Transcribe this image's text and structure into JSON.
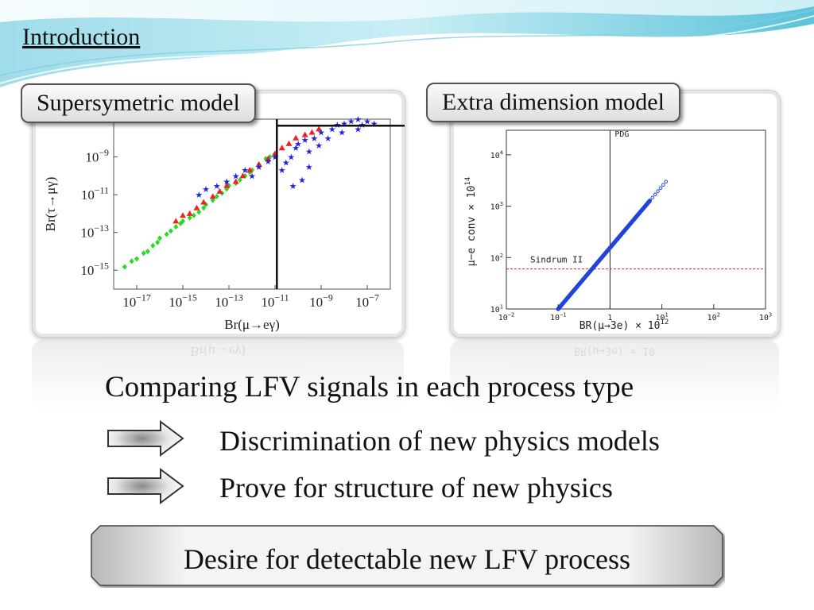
{
  "slide_title": "Introduction",
  "left_panel": {
    "label": "Supersymetric model",
    "xlabel": "Br(μ→eγ)",
    "ylabel": "Br(τ→μγ)",
    "x_ticks": [
      {
        "base": "10",
        "exp": "−17"
      },
      {
        "base": "10",
        "exp": "−15"
      },
      {
        "base": "10",
        "exp": "−13"
      },
      {
        "base": "10",
        "exp": "−11"
      },
      {
        "base": "10",
        "exp": "−9"
      },
      {
        "base": "10",
        "exp": "−7"
      }
    ],
    "y_ticks": [
      {
        "base": "10",
        "exp": "−9"
      },
      {
        "base": "10",
        "exp": "−11"
      },
      {
        "base": "10",
        "exp": "−13"
      },
      {
        "base": "10",
        "exp": "−15"
      }
    ],
    "reflection_text": "Br(μ→eγ)"
  },
  "right_panel": {
    "label": "Extra dimension model",
    "xlabel": "BR(μ→3e) × 10",
    "xlabel_exp": "12",
    "ylabel": "μ−e conv × 10",
    "ylabel_exp": "14",
    "pdg_label": "PDG",
    "sindrum_label": "Sindrum II",
    "x_ticks": [
      {
        "base": "10",
        "exp": "−2"
      },
      {
        "base": "10",
        "exp": "−1"
      },
      {
        "base": "1",
        "exp": ""
      },
      {
        "base": "10",
        "exp": "1"
      },
      {
        "base": "10",
        "exp": "2"
      },
      {
        "base": "10",
        "exp": "3"
      }
    ],
    "y_ticks": [
      {
        "base": "10",
        "exp": "4"
      },
      {
        "base": "10",
        "exp": "3"
      },
      {
        "base": "10",
        "exp": "2"
      },
      {
        "base": "10",
        "exp": "1"
      }
    ],
    "reflection_text": "BR(μ→3e) × 10"
  },
  "heading": "Comparing LFV signals in each process type",
  "bullets": [
    "Discrimination of new physics models",
    "Prove for structure of new physics"
  ],
  "banner": "Desire for detectable new LFV process",
  "chart_data": [
    {
      "type": "scatter",
      "title": "",
      "xlabel": "Br(μ→eγ)",
      "ylabel": "Br(τ→μγ)",
      "xscale": "log",
      "yscale": "log",
      "xlim": [
        1e-18,
        1e-06
      ],
      "ylim": [
        1e-16,
        1e-07
      ],
      "reference_lines": {
        "vertical_x": 1.2e-11,
        "horizontal_y": 4.5e-08
      },
      "series": [
        {
          "color": "#22dd22",
          "marker": "diamond",
          "points": [
            [
              3e-18,
              1.5e-15
            ],
            [
              6e-18,
              3e-15
            ],
            [
              1e-17,
              4e-15
            ],
            [
              2e-17,
              8e-15
            ],
            [
              3e-17,
              1e-14
            ],
            [
              5e-17,
              2e-14
            ],
            [
              8e-17,
              3e-14
            ],
            [
              1e-16,
              5e-14
            ],
            [
              2e-16,
              8e-14
            ],
            [
              3e-16,
              1.2e-13
            ],
            [
              5e-16,
              2e-13
            ],
            [
              8e-16,
              3e-13
            ],
            [
              1e-15,
              4e-13
            ],
            [
              2e-15,
              6e-13
            ],
            [
              3e-15,
              8e-13
            ],
            [
              5e-15,
              1.2e-12
            ],
            [
              8e-15,
              2e-12
            ],
            [
              1e-14,
              3e-12
            ],
            [
              2e-14,
              5e-12
            ],
            [
              3e-14,
              8e-12
            ],
            [
              5e-14,
              1.2e-11
            ],
            [
              8e-14,
              2e-11
            ],
            [
              1e-13,
              3e-11
            ],
            [
              2e-13,
              4e-11
            ],
            [
              3e-13,
              6e-11
            ],
            [
              5e-13,
              1e-10
            ],
            [
              8e-13,
              1.5e-10
            ],
            [
              1e-12,
              2e-10
            ],
            [
              2e-12,
              4e-10
            ],
            [
              4e-12,
              8e-10
            ],
            [
              6e-12,
              1e-09
            ],
            [
              1e-11,
              1.5e-09
            ]
          ]
        },
        {
          "color": "#ee2222",
          "marker": "triangle",
          "points": [
            [
              5e-16,
              4e-13
            ],
            [
              1e-15,
              8e-13
            ],
            [
              2e-15,
              1e-12
            ],
            [
              4e-15,
              2e-12
            ],
            [
              8e-15,
              4e-12
            ],
            [
              2e-14,
              8e-12
            ],
            [
              4e-14,
              1.5e-11
            ],
            [
              8e-14,
              3e-11
            ],
            [
              2e-13,
              5e-11
            ],
            [
              4e-13,
              1e-10
            ],
            [
              8e-13,
              2e-10
            ],
            [
              2e-12,
              4e-10
            ],
            [
              5e-12,
              8e-10
            ],
            [
              1e-11,
              1.5e-09
            ],
            [
              2e-11,
              3e-09
            ],
            [
              4e-11,
              5e-09
            ],
            [
              8e-11,
              1e-08
            ],
            [
              2e-10,
              1.5e-08
            ],
            [
              4e-10,
              2e-08
            ],
            [
              8e-10,
              3e-08
            ]
          ]
        },
        {
          "color": "#2222dd",
          "marker": "star",
          "points": [
            [
              5e-15,
              1e-11
            ],
            [
              1e-14,
              2e-11
            ],
            [
              3e-14,
              3e-11
            ],
            [
              8e-14,
              5e-11
            ],
            [
              2e-13,
              1e-10
            ],
            [
              5e-13,
              2e-10
            ],
            [
              1e-12,
              1e-10
            ],
            [
              2e-12,
              3e-10
            ],
            [
              5e-12,
              6e-10
            ],
            [
              1e-11,
              1e-09
            ],
            [
              2e-11,
              2e-10
            ],
            [
              3e-11,
              5e-10
            ],
            [
              5e-11,
              1e-09
            ],
            [
              8e-11,
              3e-09
            ],
            [
              1e-10,
              5e-09
            ],
            [
              2e-10,
              8e-09
            ],
            [
              3e-10,
              2e-09
            ],
            [
              5e-10,
              1e-08
            ],
            [
              8e-10,
              4e-09
            ],
            [
              1e-09,
              2e-08
            ],
            [
              2e-09,
              1e-08
            ],
            [
              3e-09,
              3e-08
            ],
            [
              5e-09,
              5e-08
            ],
            [
              8e-09,
              2e-08
            ],
            [
              1e-08,
              6e-08
            ],
            [
              2e-08,
              8e-08
            ],
            [
              4e-08,
              1e-07
            ],
            [
              6e-08,
              5e-08
            ],
            [
              1e-07,
              8e-08
            ],
            [
              2e-07,
              6e-08
            ],
            [
              4e-08,
              3e-08
            ],
            [
              3e-10,
              3e-10
            ],
            [
              6e-11,
              3e-11
            ],
            [
              1.5e-10,
              6e-11
            ]
          ]
        }
      ]
    },
    {
      "type": "scatter",
      "title": "",
      "xlabel": "BR(μ→3e) × 10^12",
      "ylabel": "μ−e conv × 10^14",
      "xscale": "log",
      "yscale": "log",
      "xlim": [
        0.01,
        1000
      ],
      "ylim": [
        10,
        30000
      ],
      "reference_lines": {
        "vertical_x": 1,
        "horizontal_y": 60,
        "horizontal_label": "Sindrum II",
        "vertical_label": "PDG"
      },
      "series": [
        {
          "color": "#2244dd",
          "marker": "circle",
          "line": {
            "from": [
              0.1,
              10
            ],
            "to": [
              12,
              3000
            ]
          }
        }
      ]
    }
  ]
}
